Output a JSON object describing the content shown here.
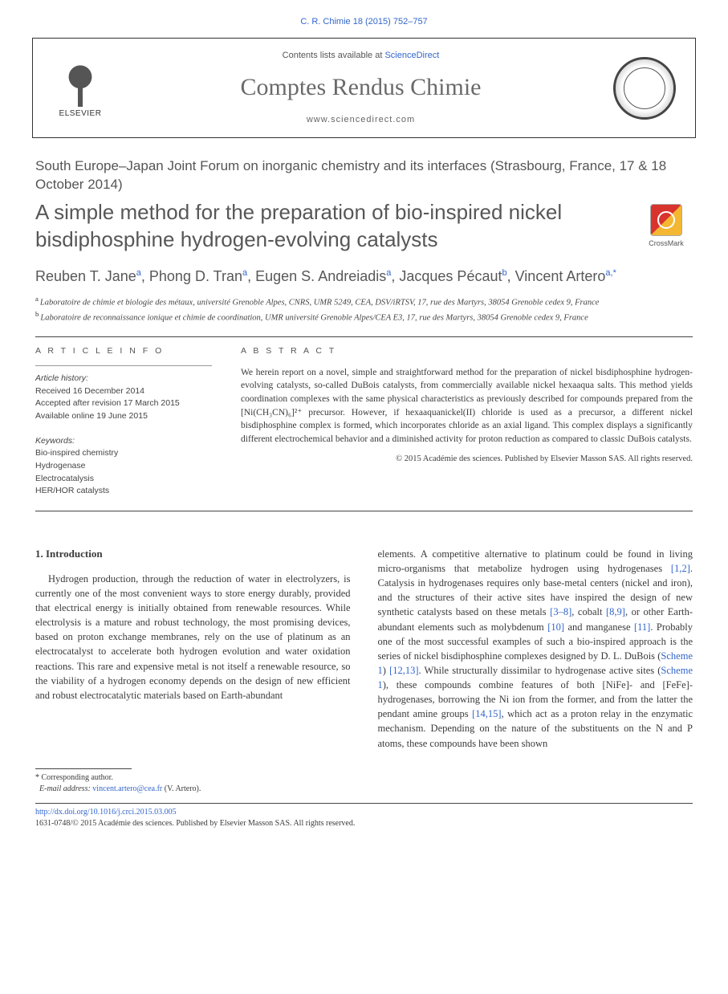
{
  "citation": "C. R. Chimie 18 (2015) 752–757",
  "contents_prefix": "Contents lists available at ",
  "contents_link": "ScienceDirect",
  "journal_title": "Comptes Rendus Chimie",
  "journal_url": "www.sciencedirect.com",
  "elsevier_label": "ELSEVIER",
  "section_label": "South Europe–Japan Joint Forum on inorganic chemistry and its interfaces (Strasbourg, France, 17 & 18 October 2014)",
  "paper_title": "A simple method for the preparation of bio-inspired nickel bisdiphosphine hydrogen-evolving catalysts",
  "crossmark_label": "CrossMark",
  "authors": [
    {
      "name": "Reuben T. Jane",
      "aff": "a"
    },
    {
      "name": "Phong D. Tran",
      "aff": "a"
    },
    {
      "name": "Eugen S. Andreiadis",
      "aff": "a"
    },
    {
      "name": "Jacques Pécaut",
      "aff": "b"
    },
    {
      "name": "Vincent Artero",
      "aff": "a,",
      "corr": true
    }
  ],
  "affiliations": {
    "a": "Laboratoire de chimie et biologie des métaux, université Grenoble Alpes, CNRS, UMR 5249, CEA, DSV/iRTSV, 17, rue des Martyrs, 38054 Grenoble cedex 9, France",
    "b": "Laboratoire de reconnaissance ionique et chimie de coordination, UMR université Grenoble Alpes/CEA E3, 17, rue des Martyrs, 38054 Grenoble cedex 9, France"
  },
  "article_info_heading": "A R T I C L E   I N F O",
  "history_heading": "Article history:",
  "history": [
    "Received 16 December 2014",
    "Accepted after revision 17 March 2015",
    "Available online 19 June 2015"
  ],
  "keywords_heading": "Keywords:",
  "keywords": [
    "Bio-inspired chemistry",
    "Hydrogenase",
    "Electrocatalysis",
    "HER/HOR catalysts"
  ],
  "abstract_heading": "A B S T R A C T",
  "abstract_body": "We herein report on a novel, simple and straightforward method for the preparation of nickel bisdiphosphine hydrogen-evolving catalysts, so-called DuBois catalysts, from commercially available nickel hexaaqua salts. This method yields coordination complexes with the same physical characteristics as previously described for compounds prepared from the [Ni(CH₃CN)₆]²⁺ precursor. However, if hexaaquanickel(II) chloride is used as a precursor, a different nickel bisdiphosphine complex is formed, which incorporates chloride as an axial ligand. This complex displays a significantly different electrochemical behavior and a diminished activity for proton reduction as compared to classic DuBois catalysts.",
  "abstract_copyright": "© 2015 Académie des sciences. Published by Elsevier Masson SAS. All rights reserved.",
  "intro_heading": "1. Introduction",
  "intro_col1": "Hydrogen production, through the reduction of water in electrolyzers, is currently one of the most convenient ways to store energy durably, provided that electrical energy is initially obtained from renewable resources. While electrolysis is a mature and robust technology, the most promising devices, based on proton exchange membranes, rely on the use of platinum as an electrocatalyst to accelerate both hydrogen evolution and water oxidation reactions. This rare and expensive metal is not itself a renewable resource, so the viability of a hydrogen economy depends on the design of new efficient and robust electrocatalytic materials based on Earth-abundant",
  "intro_col2_a": "elements. A competitive alternative to platinum could be found in living micro-organisms that metabolize hydrogen using hydrogenases ",
  "intro_col2_b": ". Catalysis in hydrogenases requires only base-metal centers (nickel and iron), and the structures of their active sites have inspired the design of new synthetic catalysts based on these metals ",
  "intro_col2_c": ", cobalt ",
  "intro_col2_d": ", or other Earth-abundant elements such as molybdenum ",
  "intro_col2_e": " and manganese ",
  "intro_col2_f": ". Probably one of the most successful examples of such a bio-inspired approach is the series of nickel bisdiphosphine complexes designed by D. L. DuBois (",
  "intro_col2_g": ") ",
  "intro_col2_h": ". While structurally dissimilar to hydrogenase active sites (",
  "intro_col2_i": "), these compounds combine features of both [NiFe]- and [FeFe]-hydrogenases, borrowing the Ni ion from the former, and from the latter the pendant amine groups ",
  "intro_col2_j": ", which act as a proton relay in the enzymatic mechanism. Depending on the nature of the substituents on the N and P atoms, these compounds have been shown",
  "refs": {
    "r12": "[1,2]",
    "r38": "[3–8]",
    "r89": "[8,9]",
    "r10": "[10]",
    "r11": "[11]",
    "scheme1a": "Scheme 1",
    "r1213": "[12,13]",
    "scheme1b": "Scheme 1",
    "r1415": "[14,15]"
  },
  "corresponding_label": "Corresponding author.",
  "email_label": "E-mail address:",
  "email_value": "vincent.artero@cea.fr",
  "email_who": " (V. Artero).",
  "doi": "http://dx.doi.org/10.1016/j.crci.2015.03.005",
  "issn_line": "1631-0748/© 2015 Académie des sciences. Published by Elsevier Masson SAS. All rights reserved.",
  "colors": {
    "link": "#3366cc",
    "text": "#3a3a3a",
    "heading_gray": "#575757"
  }
}
